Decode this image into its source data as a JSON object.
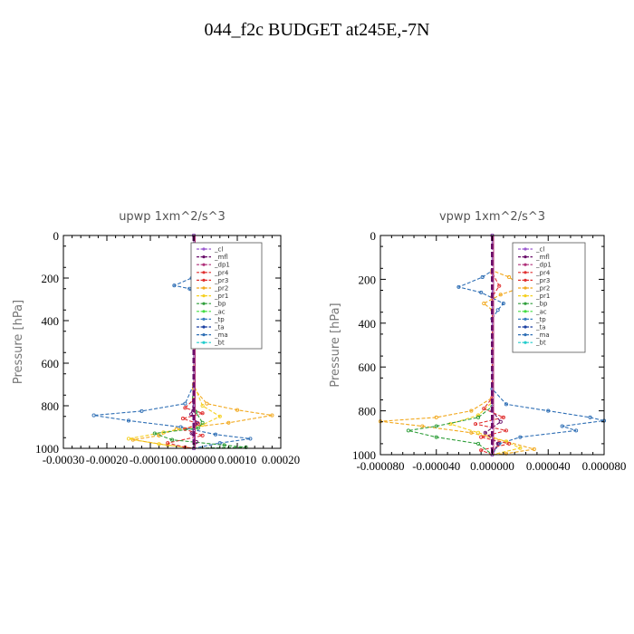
{
  "title": "044_f2c  BUDGET at245E,-7N",
  "legend_entries": [
    {
      "name": "_cl",
      "color": "#9b59d0"
    },
    {
      "name": "_mfl",
      "color": "#6a0f6a"
    },
    {
      "name": "_dp1",
      "color": "#b0307a"
    },
    {
      "name": "_pr4",
      "color": "#e03030"
    },
    {
      "name": "_pr3",
      "color": "#e03030"
    },
    {
      "name": "_pr2",
      "color": "#f2a81c"
    },
    {
      "name": "_pr1",
      "color": "#f5d020"
    },
    {
      "name": "_bp",
      "color": "#2f9e3a"
    },
    {
      "name": "_ac",
      "color": "#44dd44"
    },
    {
      "name": "_tp",
      "color": "#3a7fc1"
    },
    {
      "name": "_ta",
      "color": "#1a3fa0"
    },
    {
      "name": "_ma",
      "color": "#2f6fb5"
    },
    {
      "name": "_bt",
      "color": "#22cccc"
    }
  ],
  "chart_data": [
    {
      "type": "line",
      "title": "upwp   1xm^2/s^3",
      "ylabel": "Pressure [hPa]",
      "xlabel": "",
      "xlim": [
        -0.0003,
        0.0002
      ],
      "ylim": [
        1000,
        0
      ],
      "x_tick_labels": [
        "-0.00030",
        "-0.00020",
        "-0.00010",
        "0.000000",
        "0.00010",
        "0.00020"
      ],
      "x_tick_values": [
        -0.0003,
        -0.0002,
        -0.0001,
        0,
        0.0001,
        0.0002
      ],
      "y_tick_labels": [
        "0",
        "200",
        "400",
        "600",
        "800",
        "1000"
      ],
      "y_tick_values": [
        0,
        200,
        400,
        600,
        800,
        1000
      ],
      "series": [
        {
          "name": "_ma",
          "color": "#2f6fb5",
          "points": [
            [
              0,
              0
            ],
            [
              0,
              150
            ],
            [
              -5e-06,
              200
            ],
            [
              -4.5e-05,
              235
            ],
            [
              -1e-05,
              250
            ],
            [
              0,
              300
            ],
            [
              0,
              700
            ],
            [
              -2e-05,
              790
            ],
            [
              -0.00012,
              825
            ],
            [
              -0.00023,
              845
            ],
            [
              -0.00015,
              870
            ],
            [
              -3e-05,
              900
            ],
            [
              5e-05,
              935
            ],
            [
              0.00013,
              955
            ],
            [
              6e-05,
              975
            ],
            [
              0,
              1000
            ]
          ]
        },
        {
          "name": "_pr2",
          "color": "#f2a81c",
          "points": [
            [
              0,
              0
            ],
            [
              0,
              190
            ],
            [
              1.8e-05,
              230
            ],
            [
              5e-06,
              260
            ],
            [
              0,
              300
            ],
            [
              0,
              720
            ],
            [
              3e-05,
              790
            ],
            [
              0.0001,
              820
            ],
            [
              0.00018,
              845
            ],
            [
              8e-05,
              880
            ],
            [
              -4e-05,
              910
            ],
            [
              -8e-05,
              940
            ],
            [
              -0.00014,
              960
            ],
            [
              -6e-05,
              985
            ],
            [
              0,
              1000
            ]
          ]
        },
        {
          "name": "_pr1",
          "color": "#f5d020",
          "points": [
            [
              0,
              0
            ],
            [
              0,
              700
            ],
            [
              2e-05,
              800
            ],
            [
              6e-05,
              850
            ],
            [
              2e-05,
              890
            ],
            [
              -7e-05,
              925
            ],
            [
              -0.00015,
              955
            ],
            [
              -8e-05,
              980
            ],
            [
              0,
              1000
            ]
          ]
        },
        {
          "name": "_pr4",
          "color": "#e03030",
          "points": [
            [
              0,
              0
            ],
            [
              0,
              180
            ],
            [
              8e-06,
              230
            ],
            [
              0,
              260
            ],
            [
              0,
              770
            ],
            [
              -2e-05,
              810
            ],
            [
              2e-05,
              835
            ],
            [
              -2.5e-05,
              860
            ],
            [
              1e-05,
              885
            ],
            [
              -2e-05,
              910
            ],
            [
              2e-05,
              940
            ],
            [
              -6e-05,
              975
            ],
            [
              -2e-05,
              995
            ],
            [
              0,
              1000
            ]
          ]
        },
        {
          "name": "_bp",
          "color": "#2f9e3a",
          "points": [
            [
              0,
              0
            ],
            [
              0,
              760
            ],
            [
              5e-06,
              830
            ],
            [
              2e-05,
              880
            ],
            [
              1e-05,
              905
            ],
            [
              -9e-05,
              930
            ],
            [
              -5e-05,
              960
            ],
            [
              7e-05,
              985
            ],
            [
              0.00012,
              995
            ],
            [
              0,
              1000
            ]
          ]
        },
        {
          "name": "_mfl",
          "color": "#6a0f6a",
          "points": [
            [
              0,
              0
            ],
            [
              0,
              780
            ],
            [
              -6e-06,
              840
            ],
            [
              8e-06,
              880
            ],
            [
              -5e-06,
              930
            ],
            [
              6e-06,
              970
            ],
            [
              0,
              1000
            ]
          ]
        },
        {
          "name": "_cl",
          "color": "#9b59d0",
          "points": [
            [
              0,
              0
            ],
            [
              0,
              1000
            ]
          ]
        }
      ]
    },
    {
      "type": "line",
      "title": "vpwp   1xm^2/s^3",
      "ylabel": "Pressure [hPa]",
      "xlabel": "",
      "xlim": [
        -8e-05,
        8e-05
      ],
      "ylim": [
        1000,
        0
      ],
      "x_tick_labels": [
        "-0.000080",
        "-0.000040",
        "0.000000",
        "0.000040",
        "0.000080"
      ],
      "x_tick_values": [
        -8e-05,
        -4e-05,
        0,
        4e-05,
        8e-05
      ],
      "y_tick_labels": [
        "0",
        "200",
        "400",
        "600",
        "800",
        "1000"
      ],
      "y_tick_values": [
        0,
        200,
        400,
        600,
        800,
        1000
      ],
      "series": [
        {
          "name": "_ma",
          "color": "#2f6fb5",
          "points": [
            [
              0,
              0
            ],
            [
              0,
              160
            ],
            [
              -7e-06,
              190
            ],
            [
              -2.4e-05,
              235
            ],
            [
              -8e-06,
              260
            ],
            [
              8e-06,
              310
            ],
            [
              4e-06,
              340
            ],
            [
              0,
              380
            ],
            [
              0,
              700
            ],
            [
              1e-05,
              770
            ],
            [
              4e-05,
              800
            ],
            [
              7e-05,
              830
            ],
            [
              8e-05,
              845
            ],
            [
              5e-05,
              870
            ],
            [
              6e-05,
              890
            ],
            [
              2e-05,
              920
            ],
            [
              5e-06,
              950
            ],
            [
              0,
              1000
            ]
          ]
        },
        {
          "name": "_pr2",
          "color": "#f2a81c",
          "points": [
            [
              0,
              0
            ],
            [
              0,
              160
            ],
            [
              1.2e-05,
              190
            ],
            [
              2.2e-05,
              235
            ],
            [
              6e-06,
              270
            ],
            [
              -6e-06,
              310
            ],
            [
              0,
              340
            ],
            [
              0,
              740
            ],
            [
              -1.5e-05,
              800
            ],
            [
              -4e-05,
              830
            ],
            [
              -8e-05,
              848
            ],
            [
              -5e-05,
              870
            ],
            [
              -1.5e-05,
              900
            ],
            [
              1e-05,
              940
            ],
            [
              3e-05,
              975
            ],
            [
              1e-05,
              995
            ],
            [
              0,
              1000
            ]
          ]
        },
        {
          "name": "_pr1",
          "color": "#f5d020",
          "points": [
            [
              0,
              0
            ],
            [
              0,
              760
            ],
            [
              -1e-05,
              820
            ],
            [
              -3e-05,
              860
            ],
            [
              -1e-05,
              900
            ],
            [
              1e-05,
              940
            ],
            [
              2e-05,
              970
            ],
            [
              0,
              1000
            ]
          ]
        },
        {
          "name": "_pr4",
          "color": "#e03030",
          "points": [
            [
              0,
              0
            ],
            [
              0,
              170
            ],
            [
              5e-06,
              230
            ],
            [
              0,
              280
            ],
            [
              0,
              740
            ],
            [
              -6e-06,
              790
            ],
            [
              8e-06,
              830
            ],
            [
              -1.2e-05,
              860
            ],
            [
              1e-05,
              890
            ],
            [
              -8e-06,
              920
            ],
            [
              1.2e-05,
              950
            ],
            [
              -8e-06,
              980
            ],
            [
              0,
              1000
            ]
          ]
        },
        {
          "name": "_bp",
          "color": "#2f9e3a",
          "points": [
            [
              0,
              0
            ],
            [
              0,
              780
            ],
            [
              -1e-05,
              830
            ],
            [
              -4e-05,
              870
            ],
            [
              -6e-05,
              890
            ],
            [
              -4e-05,
              920
            ],
            [
              -1e-05,
              950
            ],
            [
              0,
              1000
            ]
          ]
        },
        {
          "name": "_mfl",
          "color": "#6a0f6a",
          "points": [
            [
              0,
              0
            ],
            [
              0,
              800
            ],
            [
              6e-06,
              850
            ],
            [
              -5e-06,
              900
            ],
            [
              4e-06,
              950
            ],
            [
              0,
              1000
            ]
          ]
        },
        {
          "name": "_cl",
          "color": "#9b59d0",
          "points": [
            [
              0,
              0
            ],
            [
              0,
              1000
            ]
          ]
        }
      ]
    }
  ]
}
